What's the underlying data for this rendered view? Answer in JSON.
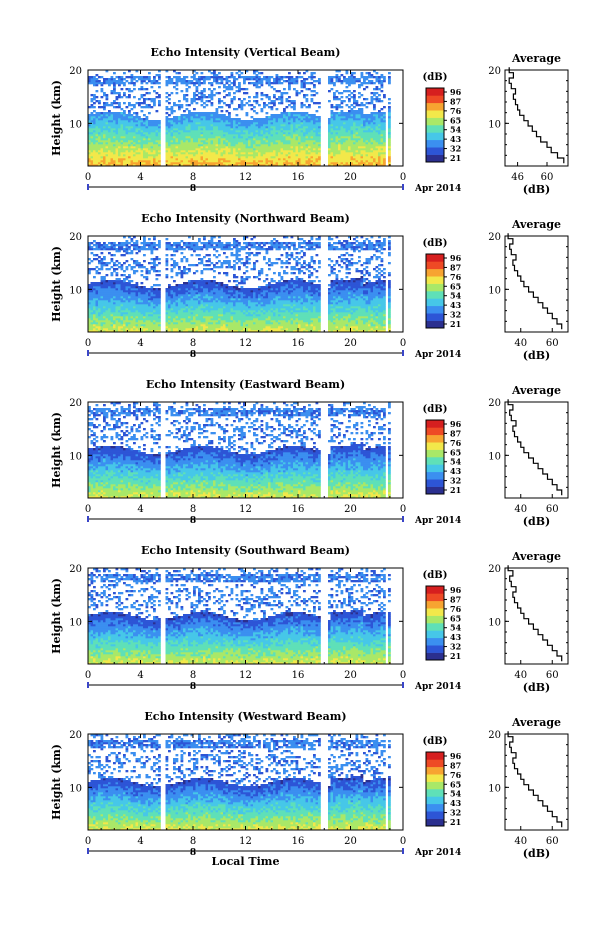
{
  "figure": {
    "colorbar_unit": "(dB)",
    "average_title": "Average",
    "average_xlabel": "(dB)",
    "ylabel": "Height (km)",
    "date_label": "Apr 2014",
    "date_marker": "8",
    "xlabel": "Local Time",
    "colorbar_ticks": [
      "96",
      "87",
      "76",
      "65",
      "54",
      "43",
      "32",
      "21"
    ],
    "colormap": [
      "#2b2f8f",
      "#2d55d6",
      "#3b8ff0",
      "#46c7e8",
      "#5fe0b8",
      "#a9e868",
      "#f2e84a",
      "#f7a431",
      "#ee4a25",
      "#d61f1f"
    ]
  },
  "chart_data": [
    {
      "type": "heatmap",
      "title": "Echo Intensity (Vertical Beam)",
      "xlabel": "",
      "ylabel": "Height (km)",
      "x_ticks": [
        "0",
        "4",
        "8",
        "12",
        "16",
        "20",
        "0"
      ],
      "y_ticks": [
        "20",
        "10"
      ],
      "xlim": [
        0,
        24
      ],
      "ylim": [
        2,
        20
      ],
      "colorbar": {
        "label": "(dB)",
        "ticks": [
          96,
          87,
          76,
          65,
          54,
          43,
          32,
          21
        ],
        "range": [
          21,
          96
        ]
      },
      "data_gaps_hours": [
        [
          5.5,
          5.9
        ],
        [
          17.8,
          18.3
        ],
        [
          22.6,
          22.8
        ]
      ],
      "profile": {
        "title": "Average",
        "xlabel": "(dB)",
        "x_ticks": [
          "46",
          "60"
        ],
        "y_ticks": [
          "20",
          "10"
        ],
        "xlim": [
          40,
          70
        ],
        "height_km": [
          3,
          4,
          5,
          6,
          7,
          8,
          9,
          10,
          11,
          12,
          13,
          14,
          15,
          16,
          17,
          18,
          19,
          20
        ],
        "value_db": [
          68,
          65,
          62,
          60,
          57,
          55,
          53,
          51,
          49,
          47,
          46,
          45,
          44,
          45,
          43,
          42,
          44,
          42
        ]
      }
    },
    {
      "type": "heatmap",
      "title": "Echo Intensity (Northward Beam)",
      "xlabel": "",
      "ylabel": "Height (km)",
      "x_ticks": [
        "0",
        "4",
        "8",
        "12",
        "16",
        "20",
        "0"
      ],
      "y_ticks": [
        "20",
        "10"
      ],
      "xlim": [
        0,
        24
      ],
      "ylim": [
        2,
        20
      ],
      "colorbar": {
        "label": "(dB)",
        "ticks": [
          96,
          87,
          76,
          65,
          54,
          43,
          32,
          21
        ],
        "range": [
          21,
          96
        ]
      },
      "data_gaps_hours": [
        [
          5.5,
          5.9
        ],
        [
          17.8,
          18.3
        ],
        [
          22.6,
          22.8
        ]
      ],
      "profile": {
        "title": "Average",
        "xlabel": "(dB)",
        "x_ticks": [
          "40",
          "60"
        ],
        "y_ticks": [
          "20",
          "10"
        ],
        "xlim": [
          30,
          70
        ],
        "height_km": [
          3,
          4,
          5,
          6,
          7,
          8,
          9,
          10,
          11,
          12,
          13,
          14,
          15,
          16,
          17,
          18,
          19,
          20
        ],
        "value_db": [
          66,
          63,
          60,
          57,
          54,
          51,
          48,
          45,
          42,
          40,
          38,
          36,
          35,
          37,
          34,
          33,
          35,
          32
        ]
      }
    },
    {
      "type": "heatmap",
      "title": "Echo Intensity (Eastward Beam)",
      "xlabel": "",
      "ylabel": "Height (km)",
      "x_ticks": [
        "0",
        "4",
        "8",
        "12",
        "16",
        "20",
        "0"
      ],
      "y_ticks": [
        "20",
        "10"
      ],
      "xlim": [
        0,
        24
      ],
      "ylim": [
        2,
        20
      ],
      "colorbar": {
        "label": "(dB)",
        "ticks": [
          96,
          87,
          76,
          65,
          54,
          43,
          32,
          21
        ],
        "range": [
          21,
          96
        ]
      },
      "data_gaps_hours": [
        [
          5.5,
          5.9
        ],
        [
          17.8,
          18.3
        ],
        [
          22.6,
          22.8
        ]
      ],
      "profile": {
        "title": "Average",
        "xlabel": "(dB)",
        "x_ticks": [
          "40",
          "60"
        ],
        "y_ticks": [
          "20",
          "10"
        ],
        "xlim": [
          30,
          70
        ],
        "height_km": [
          3,
          4,
          5,
          6,
          7,
          8,
          9,
          10,
          11,
          12,
          13,
          14,
          15,
          16,
          17,
          18,
          19,
          20
        ],
        "value_db": [
          66,
          63,
          60,
          57,
          54,
          51,
          48,
          45,
          42,
          40,
          38,
          36,
          35,
          37,
          34,
          33,
          35,
          32
        ]
      }
    },
    {
      "type": "heatmap",
      "title": "Echo Intensity (Southward Beam)",
      "xlabel": "",
      "ylabel": "Height (km)",
      "x_ticks": [
        "0",
        "4",
        "8",
        "12",
        "16",
        "20",
        "0"
      ],
      "y_ticks": [
        "20",
        "10"
      ],
      "xlim": [
        0,
        24
      ],
      "ylim": [
        2,
        20
      ],
      "colorbar": {
        "label": "(dB)",
        "ticks": [
          96,
          87,
          76,
          65,
          54,
          43,
          32,
          21
        ],
        "range": [
          21,
          96
        ]
      },
      "data_gaps_hours": [
        [
          5.5,
          5.9
        ],
        [
          17.8,
          18.3
        ],
        [
          22.6,
          22.8
        ]
      ],
      "profile": {
        "title": "Average",
        "xlabel": "(dB)",
        "x_ticks": [
          "40",
          "60"
        ],
        "y_ticks": [
          "20",
          "10"
        ],
        "xlim": [
          30,
          70
        ],
        "height_km": [
          3,
          4,
          5,
          6,
          7,
          8,
          9,
          10,
          11,
          12,
          13,
          14,
          15,
          16,
          17,
          18,
          19,
          20
        ],
        "value_db": [
          66,
          63,
          60,
          57,
          54,
          51,
          48,
          45,
          42,
          40,
          38,
          36,
          35,
          37,
          34,
          33,
          35,
          32
        ]
      }
    },
    {
      "type": "heatmap",
      "title": "Echo Intensity (Westward Beam)",
      "xlabel": "Local Time",
      "ylabel": "Height (km)",
      "x_ticks": [
        "0",
        "4",
        "8",
        "12",
        "16",
        "20",
        "0"
      ],
      "y_ticks": [
        "20",
        "10"
      ],
      "xlim": [
        0,
        24
      ],
      "ylim": [
        2,
        20
      ],
      "colorbar": {
        "label": "(dB)",
        "ticks": [
          96,
          87,
          76,
          65,
          54,
          43,
          32,
          21
        ],
        "range": [
          21,
          96
        ]
      },
      "data_gaps_hours": [
        [
          5.5,
          5.9
        ],
        [
          17.8,
          18.3
        ],
        [
          22.6,
          22.8
        ]
      ],
      "profile": {
        "title": "Average",
        "xlabel": "(dB)",
        "x_ticks": [
          "40",
          "60"
        ],
        "y_ticks": [
          "20",
          "10"
        ],
        "xlim": [
          30,
          70
        ],
        "height_km": [
          3,
          4,
          5,
          6,
          7,
          8,
          9,
          10,
          11,
          12,
          13,
          14,
          15,
          16,
          17,
          18,
          19,
          20
        ],
        "value_db": [
          66,
          63,
          60,
          57,
          54,
          51,
          48,
          45,
          42,
          40,
          38,
          36,
          35,
          37,
          34,
          33,
          35,
          32
        ]
      }
    }
  ]
}
